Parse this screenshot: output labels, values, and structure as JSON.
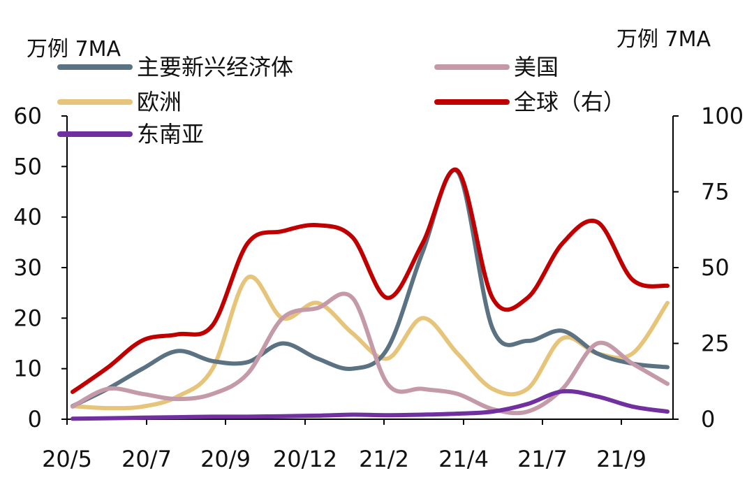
{
  "chart_data": {
    "type": "line",
    "units": {
      "left": "万例 7MA",
      "right": "万例 7MA"
    },
    "x_ticks": [
      "20/5",
      "20/7",
      "20/9",
      "20/12",
      "21/2",
      "21/4",
      "21/7",
      "21/9"
    ],
    "x": [
      "2020-05",
      "2020-06",
      "2020-07",
      "2020-08",
      "2020-09",
      "2020-10",
      "2020-11",
      "2020-12",
      "2021-01",
      "2021-02",
      "2021-03",
      "2021-04",
      "2021-05",
      "2021-06",
      "2021-07",
      "2021-08",
      "2021-09",
      "2021-10"
    ],
    "left_axis": {
      "min": 0,
      "max": 60,
      "ticks": [
        0,
        10,
        20,
        30,
        40,
        50,
        60
      ]
    },
    "right_axis": {
      "min": 0,
      "max": 100,
      "ticks": [
        0,
        25,
        50,
        75,
        100
      ]
    },
    "legend_placement": "top",
    "series": [
      {
        "name": "主要新兴经济体",
        "axis": "left",
        "color": "#5a7282",
        "values": [
          2.6,
          6,
          10,
          13.5,
          11.5,
          11.3,
          15,
          12,
          10,
          14,
          33,
          49,
          18,
          15.5,
          17.5,
          13,
          11,
          10.3
        ]
      },
      {
        "name": "欧洲",
        "axis": "left",
        "color": "#e6c57a",
        "values": [
          2.6,
          2.2,
          2.5,
          4.5,
          10,
          28,
          20,
          23,
          17,
          12,
          20,
          13,
          6,
          6,
          16,
          13,
          13,
          23
        ]
      },
      {
        "name": "东南亚",
        "axis": "left",
        "color": "#7030a0",
        "values": [
          0.1,
          0.2,
          0.3,
          0.4,
          0.5,
          0.5,
          0.6,
          0.7,
          0.9,
          0.8,
          0.9,
          1.1,
          1.5,
          3,
          5.5,
          4.5,
          2.5,
          1.5
        ]
      },
      {
        "name": "美国",
        "axis": "left",
        "color": "#c49aa9",
        "values": [
          2.5,
          6,
          5,
          4,
          5,
          9,
          20,
          22,
          24,
          7,
          6,
          5,
          2,
          1.5,
          6,
          15,
          11,
          7
        ]
      },
      {
        "name": "全球（右）",
        "axis": "right",
        "color": "#c00000",
        "values": [
          9,
          17,
          26,
          28,
          31,
          58,
          62,
          64,
          60,
          40,
          58,
          82,
          40,
          40,
          58,
          65,
          46,
          44
        ]
      }
    ]
  }
}
